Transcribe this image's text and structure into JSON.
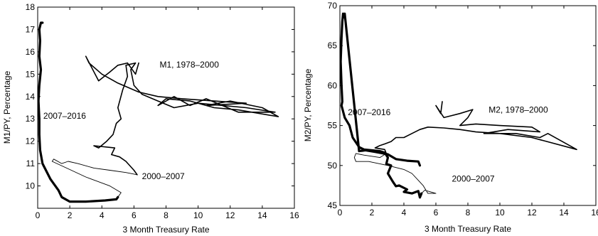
{
  "chart_data": [
    {
      "type": "line",
      "xlabel": "3 Month Treasury Rate",
      "ylabel": "M1/PY, Percentage",
      "xlim": [
        0,
        16
      ],
      "ylim": [
        9,
        18
      ],
      "xticks": [
        0,
        2,
        4,
        6,
        8,
        10,
        12,
        14,
        16
      ],
      "yticks": [
        10,
        11,
        12,
        13,
        14,
        15,
        16,
        17,
        18
      ],
      "grid": false,
      "series": [
        {
          "name": "M1, 1978–2000",
          "label_at": [
            7.6,
            15.3
          ],
          "points": [
            [
              6.3,
              15.5
            ],
            [
              6.1,
              15.0
            ],
            [
              5.6,
              15.5
            ],
            [
              5.0,
              15.4
            ],
            [
              4.5,
              15.1
            ],
            [
              3.8,
              14.7
            ],
            [
              3.0,
              15.8
            ],
            [
              3.2,
              15.5
            ],
            [
              4.0,
              15.0
            ],
            [
              5.0,
              14.6
            ],
            [
              6.3,
              14.2
            ],
            [
              7.5,
              14.0
            ],
            [
              9.0,
              13.9
            ],
            [
              13.0,
              13.7
            ],
            [
              10.5,
              13.6
            ],
            [
              12.0,
              13.8
            ],
            [
              14.0,
              13.5
            ],
            [
              15.0,
              13.1
            ],
            [
              12.5,
              13.4
            ],
            [
              11.0,
              13.5
            ],
            [
              9.5,
              13.8
            ],
            [
              8.0,
              13.9
            ],
            [
              7.5,
              13.6
            ],
            [
              8.5,
              14.0
            ],
            [
              9.5,
              13.6
            ],
            [
              10.5,
              13.9
            ],
            [
              12.5,
              13.3
            ],
            [
              14.8,
              13.3
            ],
            [
              13.0,
              13.5
            ],
            [
              10.0,
              13.7
            ],
            [
              8.5,
              13.5
            ],
            [
              7.5,
              13.8
            ],
            [
              6.5,
              14.1
            ],
            [
              6.0,
              14.5
            ],
            [
              5.8,
              15.2
            ],
            [
              6.1,
              15.5
            ],
            [
              5.5,
              15.4
            ],
            [
              5.6,
              14.9
            ],
            [
              5.3,
              14.3
            ],
            [
              5.0,
              13.5
            ],
            [
              5.2,
              13.0
            ],
            [
              4.9,
              12.8
            ],
            [
              4.7,
              12.3
            ],
            [
              4.3,
              12.0
            ],
            [
              3.8,
              11.7
            ],
            [
              3.5,
              11.8
            ],
            [
              4.8,
              11.7
            ],
            [
              4.6,
              11.4
            ],
            [
              5.1,
              11.3
            ],
            [
              5.5,
              11.1
            ],
            [
              6.0,
              10.7
            ],
            [
              6.2,
              10.5
            ]
          ]
        },
        {
          "name": "2000–2007",
          "label_at": [
            6.5,
            10.3
          ],
          "points": [
            [
              6.2,
              10.5
            ],
            [
              5.5,
              10.6
            ],
            [
              4.5,
              10.7
            ],
            [
              3.5,
              10.8
            ],
            [
              2.5,
              11.0
            ],
            [
              1.9,
              11.1
            ],
            [
              1.5,
              11.0
            ],
            [
              1.0,
              11.2
            ],
            [
              0.9,
              11.1
            ],
            [
              1.2,
              11.0
            ],
            [
              1.8,
              10.8
            ],
            [
              3.0,
              10.4
            ],
            [
              4.5,
              10.0
            ],
            [
              5.2,
              9.7
            ],
            [
              5.0,
              9.5
            ]
          ]
        },
        {
          "name": "2007–2016",
          "label_at": [
            0.35,
            13.0
          ],
          "points": [
            [
              5.0,
              9.5
            ],
            [
              4.9,
              9.4
            ],
            [
              4.2,
              9.35
            ],
            [
              3.0,
              9.3
            ],
            [
              2.0,
              9.3
            ],
            [
              1.5,
              9.5
            ],
            [
              1.3,
              9.8
            ],
            [
              0.8,
              10.3
            ],
            [
              0.3,
              11.0
            ],
            [
              0.15,
              11.6
            ],
            [
              0.1,
              12.3
            ],
            [
              0.1,
              13.0
            ],
            [
              0.05,
              13.8
            ],
            [
              0.1,
              14.5
            ],
            [
              0.2,
              15.2
            ],
            [
              0.1,
              15.8
            ],
            [
              0.15,
              16.5
            ],
            [
              0.1,
              17.0
            ],
            [
              0.2,
              17.3
            ],
            [
              0.3,
              17.3
            ]
          ]
        }
      ]
    },
    {
      "type": "line",
      "xlabel": "3 Month Treasury Rate",
      "ylabel": "M2/PY, Percentage",
      "xlim": [
        0,
        16
      ],
      "ylim": [
        45,
        70
      ],
      "xticks": [
        0,
        2,
        4,
        6,
        8,
        10,
        12,
        14,
        16
      ],
      "yticks": [
        45,
        50,
        55,
        60,
        65,
        70
      ],
      "grid": false,
      "series": [
        {
          "name": "M2, 1978–2000",
          "label_at": [
            9.3,
            56.6
          ],
          "points": [
            [
              6.4,
              58.0
            ],
            [
              6.3,
              56.5
            ],
            [
              6.0,
              57.5
            ],
            [
              6.5,
              56.0
            ],
            [
              7.5,
              56.5
            ],
            [
              8.3,
              57.0
            ],
            [
              8.0,
              56.0
            ],
            [
              7.5,
              55.0
            ],
            [
              8.5,
              55.2
            ],
            [
              10.0,
              55.0
            ],
            [
              12.0,
              54.8
            ],
            [
              12.5,
              54.2
            ],
            [
              10.5,
              54.5
            ],
            [
              9.0,
              54.0
            ],
            [
              11.0,
              54.0
            ],
            [
              12.5,
              53.5
            ],
            [
              13.0,
              54.0
            ],
            [
              14.8,
              52.0
            ],
            [
              12.0,
              53.5
            ],
            [
              10.0,
              54.0
            ],
            [
              8.5,
              54.2
            ],
            [
              7.5,
              54.5
            ],
            [
              6.5,
              54.7
            ],
            [
              5.5,
              54.8
            ],
            [
              5.0,
              54.5
            ],
            [
              4.5,
              54.0
            ],
            [
              4.0,
              53.5
            ],
            [
              3.5,
              53.5
            ],
            [
              3.2,
              53.0
            ],
            [
              2.8,
              52.7
            ],
            [
              2.5,
              52.5
            ],
            [
              2.2,
              52.2
            ],
            [
              2.8,
              52.0
            ],
            [
              2.9,
              51.5
            ]
          ]
        },
        {
          "name": "2000–2007",
          "label_at": [
            7.0,
            48.0
          ],
          "points": [
            [
              2.9,
              51.5
            ],
            [
              2.5,
              51.0
            ],
            [
              1.5,
              51.3
            ],
            [
              1.0,
              51.5
            ],
            [
              0.9,
              51.0
            ],
            [
              1.0,
              50.5
            ],
            [
              1.8,
              50.5
            ],
            [
              3.0,
              50.0
            ],
            [
              4.0,
              49.5
            ],
            [
              4.5,
              49.0
            ],
            [
              5.2,
              47.5
            ],
            [
              5.5,
              46.5
            ],
            [
              6.0,
              46.5
            ],
            [
              5.3,
              46.9
            ],
            [
              5.1,
              46.5
            ]
          ]
        },
        {
          "name": "2007–2016",
          "label_at": [
            0.5,
            56.3
          ],
          "points": [
            [
              5.1,
              46.5
            ],
            [
              5.0,
              46.0
            ],
            [
              4.9,
              46.8
            ],
            [
              4.5,
              46.5
            ],
            [
              4.0,
              46.7
            ],
            [
              4.2,
              47.0
            ],
            [
              3.7,
              47.5
            ],
            [
              3.5,
              47.4
            ],
            [
              3.3,
              48.0
            ],
            [
              3.0,
              49.0
            ],
            [
              3.2,
              50.0
            ],
            [
              2.9,
              50.2
            ],
            [
              3.0,
              51.0
            ],
            [
              2.8,
              51.6
            ],
            [
              2.5,
              51.8
            ],
            [
              1.5,
              52.0
            ],
            [
              1.2,
              52.3
            ],
            [
              0.8,
              53.5
            ],
            [
              0.6,
              55.0
            ],
            [
              0.3,
              56.0
            ],
            [
              0.1,
              57.5
            ],
            [
              0.15,
              58.0
            ],
            [
              0.1,
              60.0
            ],
            [
              0.05,
              63.0
            ],
            [
              0.1,
              66.0
            ],
            [
              0.15,
              68.0
            ],
            [
              0.2,
              69.0
            ],
            [
              0.3,
              68.5
            ],
            [
              0.3,
              69.0
            ],
            [
              1.2,
              51.8
            ],
            [
              1.6,
              51.9
            ],
            [
              2.2,
              51.7
            ],
            [
              3.0,
              51.4
            ],
            [
              3.5,
              50.8
            ],
            [
              4.2,
              50.6
            ],
            [
              4.9,
              50.5
            ],
            [
              5.0,
              50.0
            ]
          ]
        }
      ]
    }
  ]
}
